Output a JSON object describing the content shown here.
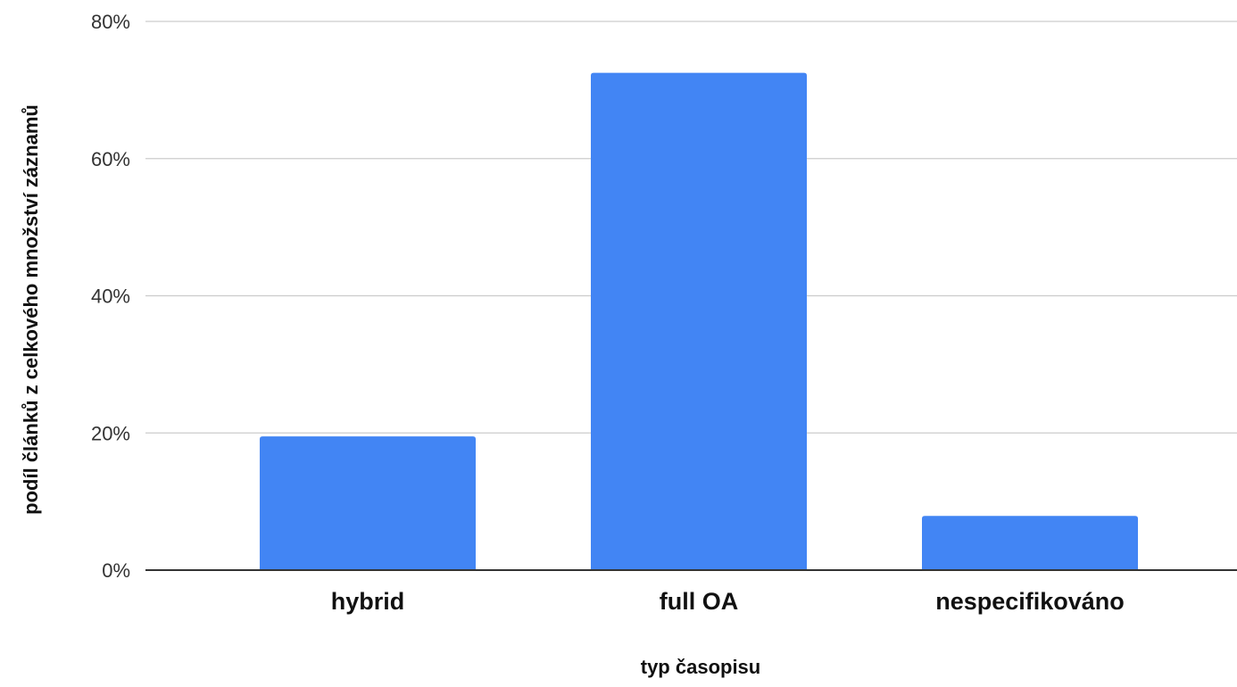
{
  "chart_data": {
    "type": "bar",
    "title": "",
    "xlabel": "typ časopisu",
    "ylabel": "podíl článků z celkového množství záznamů",
    "categories": [
      "hybrid",
      "full OA",
      "nespecifikováno"
    ],
    "series": [
      {
        "values": [
          19.5,
          72.5,
          7.9
        ]
      }
    ],
    "value_unit": "%",
    "ylim": [
      0,
      80
    ],
    "yticks": [
      0,
      20,
      40,
      60,
      80
    ],
    "ytick_labels": [
      "0%",
      "20%",
      "40%",
      "60%",
      "80%"
    ],
    "grid": true,
    "legend": "none",
    "bar_color": "#4285F4"
  }
}
